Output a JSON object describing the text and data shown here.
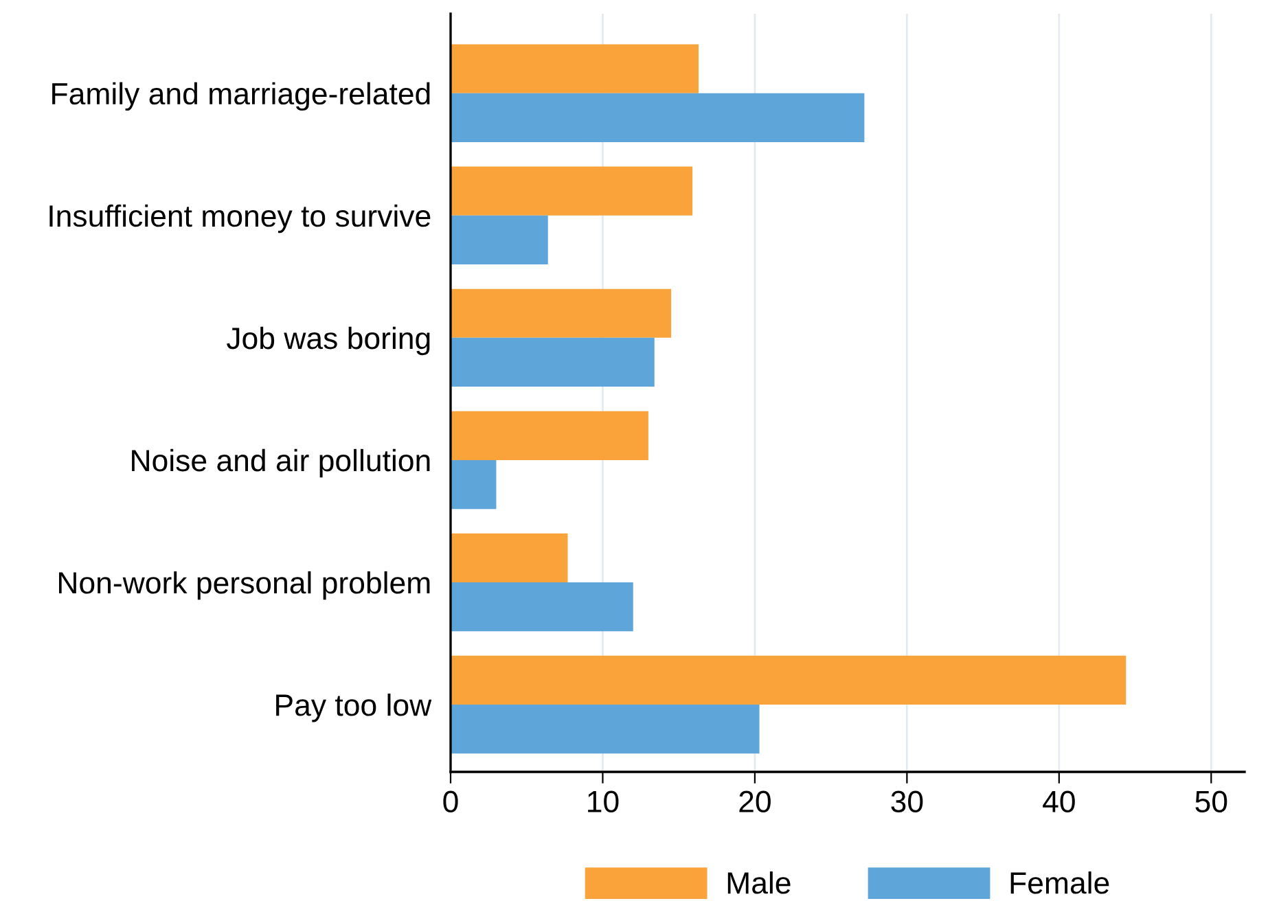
{
  "chart_data": {
    "type": "bar",
    "orientation": "horizontal",
    "categories": [
      "Family and marriage-related",
      "Insufficient money to survive",
      "Job was boring",
      "Noise and air pollution",
      "Non-work personal problem",
      "Pay too low"
    ],
    "series": [
      {
        "name": "Male",
        "color": "#f9a33a",
        "values": [
          16.3,
          15.9,
          14.5,
          13.0,
          7.7,
          44.4
        ]
      },
      {
        "name": "Female",
        "color": "#5ea5d9",
        "values": [
          27.2,
          6.4,
          13.4,
          3.0,
          12.0,
          20.3
        ]
      }
    ],
    "xlim": [
      0,
      52.2
    ],
    "xticks": [
      0,
      10,
      20,
      30,
      40,
      50
    ],
    "grid": "x",
    "legend": "bottom"
  }
}
